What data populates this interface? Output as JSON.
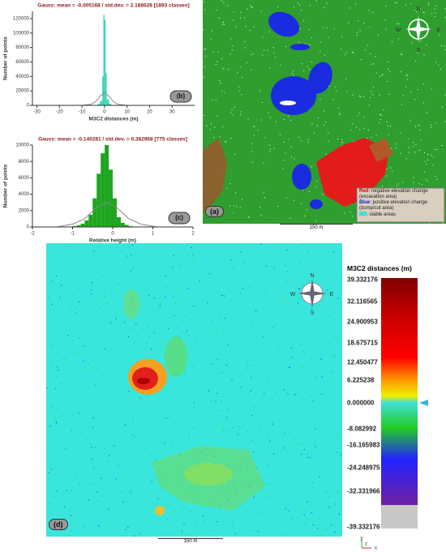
{
  "chart_data": [
    {
      "type": "histogram",
      "label": "(b)",
      "title": "Gauss: mean = -0.005168 / std.dev. = 2.188628 [1893 classes]",
      "x_label": "M3C2 distances (m)",
      "y_label": "Number of points",
      "bins": [
        -3,
        -2,
        -1,
        -0.5,
        0,
        0.5,
        1,
        2,
        3
      ],
      "counts": [
        2000,
        6000,
        40000,
        125000,
        118000,
        45000,
        8000,
        2000
      ],
      "color": "#3ad6b4",
      "curve": {
        "x": [
          -10,
          -6,
          -4,
          -2,
          0,
          2,
          4,
          6,
          10
        ],
        "values": [
          0,
          1500,
          5000,
          12500,
          18000,
          12500,
          5000,
          1500,
          0
        ],
        "color": "#888888"
      },
      "xlim": [
        -32,
        40
      ],
      "ylim": [
        0,
        130000
      ],
      "xticks": [
        -30,
        -20,
        -10,
        0,
        10,
        20,
        30
      ],
      "yticks": [
        0,
        20000,
        40000,
        60000,
        80000,
        100000,
        120000
      ]
    },
    {
      "type": "histogram",
      "label": "(c)",
      "title": "Gauss: mean = -0.140281 / std.dev. = 0.382968 [775 classes]",
      "x_label": "Relative height (m)",
      "y_label": "Number of points",
      "bins": [
        -1,
        -0.9,
        -0.8,
        -0.7,
        -0.6,
        -0.5,
        -0.4,
        -0.3,
        -0.2,
        -0.1,
        0,
        0.1,
        0.2,
        0.3,
        0.4,
        0.5,
        0.6
      ],
      "counts": [
        100,
        200,
        400,
        800,
        1500,
        3500,
        6500,
        9000,
        10000,
        7000,
        3500,
        1200,
        500,
        250,
        100,
        50
      ],
      "color": "#1fa51f",
      "curve": {
        "x": [
          -1.4,
          -1,
          -0.7,
          -0.4,
          -0.14,
          0.1,
          0.4,
          0.7,
          1.1
        ],
        "values": [
          0,
          350,
          1000,
          2400,
          3000,
          2400,
          1000,
          350,
          0
        ],
        "color": "#888888"
      },
      "xlim": [
        -2,
        2
      ],
      "ylim": [
        0,
        10000
      ],
      "xticks": [
        -2,
        -1,
        0,
        1,
        2
      ],
      "yticks": [
        0,
        2000,
        4000,
        6000,
        8000,
        10000
      ]
    }
  ],
  "map_a": {
    "label": "(a)",
    "compass": [
      "N",
      "E",
      "S",
      "W"
    ],
    "scale": "150 m",
    "legend": {
      "red_key": "Red:",
      "red_text": "negative elevation change (excavation area)",
      "blue_key": "Blue:",
      "blue_text": "positive elevation change (dump/cut area)",
      "stable_text": ": stable areas"
    }
  },
  "map_d": {
    "label": "(d)",
    "compass": [
      "N",
      "E",
      "S",
      "W"
    ],
    "scale": "150 m",
    "colorbar_title": "M3C2 distances (m)",
    "colorbar_labels": [
      "39.332176",
      "32.116565",
      "24.900953",
      "18.675715",
      "12.450477",
      "6.225238",
      "0.000000",
      "-8.082992",
      "-16.165983",
      "-24.248975",
      "-32.331966",
      "-39.332176"
    ],
    "axes": [
      "y",
      "x",
      "z"
    ]
  }
}
